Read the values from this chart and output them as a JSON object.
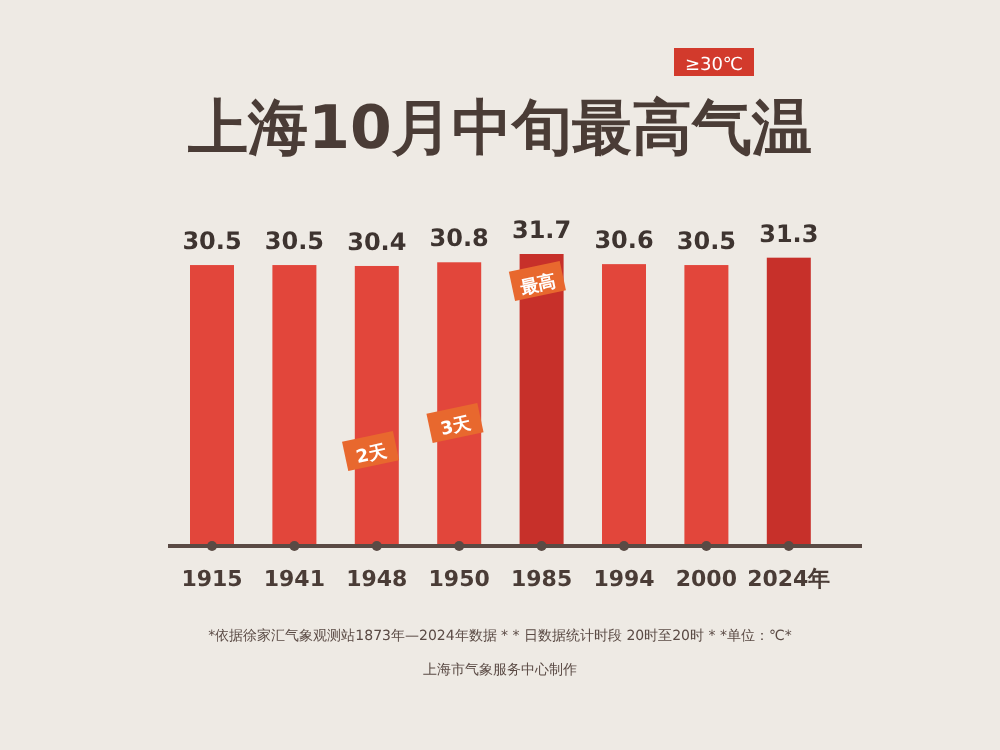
{
  "chart_data": {
    "type": "bar",
    "title": "上海10月中旬最高气温",
    "categories": [
      "1915",
      "1941",
      "1948",
      "1950",
      "1985",
      "1994",
      "2000",
      "2024年"
    ],
    "values": [
      30.5,
      30.5,
      30.4,
      30.8,
      31.7,
      30.6,
      30.5,
      31.3
    ],
    "colors": [
      "#e2463b",
      "#e2463b",
      "#e2463b",
      "#e2463b",
      "#c7302a",
      "#e2463b",
      "#e2463b",
      "#c7302a"
    ],
    "data_labels": true,
    "annotations": [
      "≥30℃",
      "最高",
      "2天",
      "3天",
      "*依据徐家汇气象观测站1873年—2024年数据 * * 日数据统计时段 20时至20时 * *单位：℃*",
      "上海市气象服务中心制作"
    ]
  }
}
